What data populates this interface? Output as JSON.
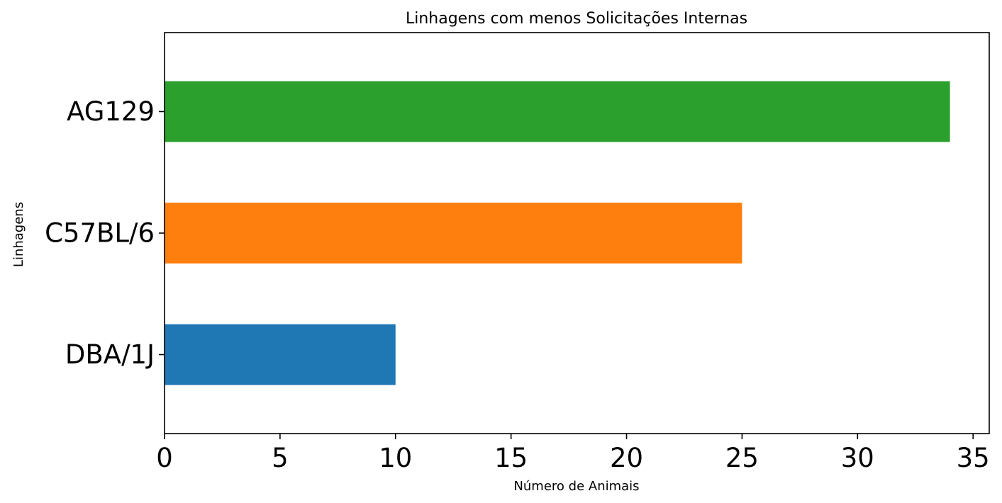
{
  "chart_data": {
    "type": "bar",
    "orientation": "horizontal",
    "title": "Linhagens com menos Solicitações Internas",
    "xlabel": "Número de Animais",
    "ylabel": "Linhagens",
    "categories": [
      "DBA/1J",
      "C57BL/6",
      "AG129"
    ],
    "values": [
      10,
      25,
      34
    ],
    "colors": [
      "#1f77b4",
      "#ff7f0e",
      "#2ca02c"
    ],
    "xlim": [
      0,
      35.7
    ],
    "xticks": [
      0,
      5,
      10,
      15,
      20,
      25,
      30,
      35
    ],
    "grid": false,
    "legend": "none"
  }
}
